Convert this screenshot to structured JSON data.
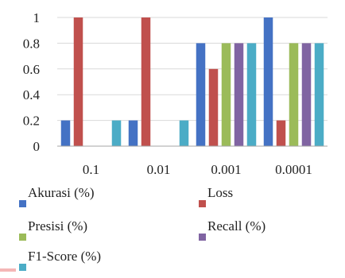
{
  "chart_data": {
    "type": "bar",
    "categories": [
      "0.1",
      "0.01",
      "0.001",
      "0.0001"
    ],
    "ylim": [
      0,
      1
    ],
    "yticks": [
      "0",
      "0.2",
      "0.4",
      "0.6",
      "0.8",
      "1"
    ],
    "grid": true,
    "legend_position": "bottom",
    "series": [
      {
        "name": "Akurasi (%)",
        "color": "#4472C4",
        "values": [
          0.2,
          0.2,
          0.8,
          1.0
        ]
      },
      {
        "name": "Loss",
        "color": "#C0504D",
        "values": [
          1.0,
          1.0,
          0.6,
          0.2
        ]
      },
      {
        "name": "Presisi (%)",
        "color": "#9BBB59",
        "values": [
          0,
          0,
          0.8,
          0.8
        ]
      },
      {
        "name": "Recall (%)",
        "color": "#8064A2",
        "values": [
          0,
          0,
          0.8,
          0.8
        ]
      },
      {
        "name": "F1-Score (%)",
        "color": "#4BACC6",
        "values": [
          0.2,
          0.2,
          0.8,
          0.8
        ]
      }
    ]
  },
  "colors": {
    "gridline": "#d9d9d9",
    "axis": "#a6a6a6",
    "text": "#222222",
    "corner_mark": "#f4b6b6"
  }
}
